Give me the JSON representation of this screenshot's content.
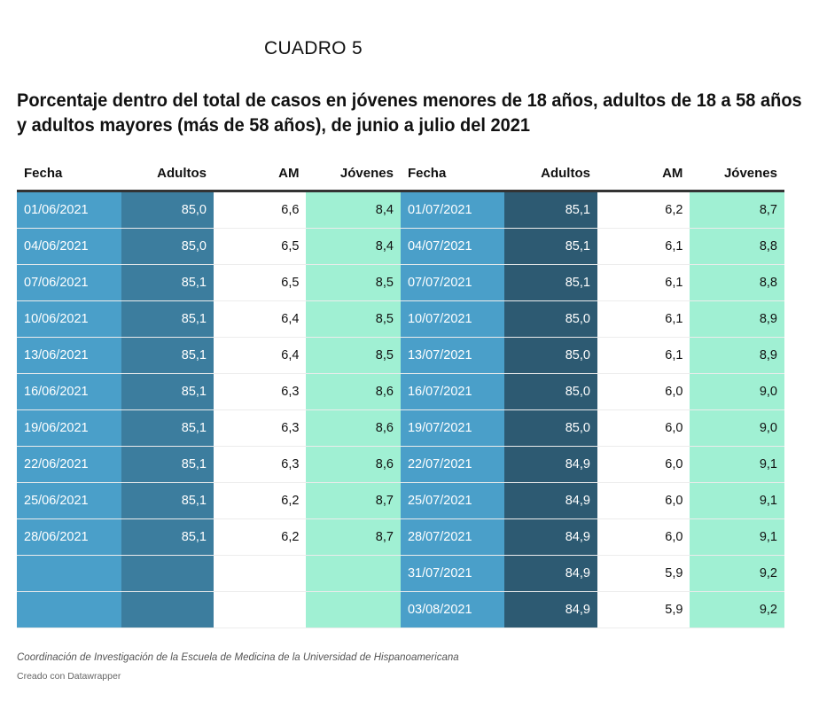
{
  "label": "CUADRO 5",
  "title_lines": [
    "Porcentaje dentro del total de casos en jóvenes menores de 18 años, adultos de 18 a 58 años",
    "y adultos mayores (más de 58 años), de junio a julio del 2021"
  ],
  "headers": [
    "Fecha",
    "Adultos",
    "AM",
    "Jóvenes",
    "Fecha",
    "Adultos",
    "AM",
    "Jóvenes"
  ],
  "rows": [
    [
      "01/06/2021",
      "85,0",
      "6,6",
      "8,4",
      "01/07/2021",
      "85,1",
      "6,2",
      "8,7"
    ],
    [
      "04/06/2021",
      "85,0",
      "6,5",
      "8,4",
      "04/07/2021",
      "85,1",
      "6,1",
      "8,8"
    ],
    [
      "07/06/2021",
      "85,1",
      "6,5",
      "8,5",
      "07/07/2021",
      "85,1",
      "6,1",
      "8,8"
    ],
    [
      "10/06/2021",
      "85,1",
      "6,4",
      "8,5",
      "10/07/2021",
      "85,0",
      "6,1",
      "8,9"
    ],
    [
      "13/06/2021",
      "85,1",
      "6,4",
      "8,5",
      "13/07/2021",
      "85,0",
      "6,1",
      "8,9"
    ],
    [
      "16/06/2021",
      "85,1",
      "6,3",
      "8,6",
      "16/07/2021",
      "85,0",
      "6,0",
      "9,0"
    ],
    [
      "19/06/2021",
      "85,1",
      "6,3",
      "8,6",
      "19/07/2021",
      "85,0",
      "6,0",
      "9,0"
    ],
    [
      "22/06/2021",
      "85,1",
      "6,3",
      "8,6",
      "22/07/2021",
      "84,9",
      "6,0",
      "9,1"
    ],
    [
      "25/06/2021",
      "85,1",
      "6,2",
      "8,7",
      "25/07/2021",
      "84,9",
      "6,0",
      "9,1"
    ],
    [
      "28/06/2021",
      "85,1",
      "6,2",
      "8,7",
      "28/07/2021",
      "84,9",
      "6,0",
      "9,1"
    ],
    [
      "",
      "",
      "",
      "",
      "31/07/2021",
      "84,9",
      "5,9",
      "9,2"
    ],
    [
      "",
      "",
      "",
      "",
      "03/08/2021",
      "84,9",
      "5,9",
      "9,2"
    ]
  ],
  "source": "Coordinación de Investigación de la Escuela de Medicina de la Universidad de Hispanoamericana",
  "credit": "Creado con Datawrapper",
  "colors": {
    "fecha_column": "#4a9fc9",
    "adultos_june_column": "#3c7d9e",
    "adultos_july_column": "#2d5a72",
    "jovenes_column": "#a0f0d3",
    "header_rule": "#333333"
  },
  "chart_data": {
    "type": "table",
    "columns": [
      "Fecha",
      "Adultos",
      "AM",
      "Jóvenes"
    ],
    "blocks": [
      {
        "rows": [
          [
            "01/06/2021",
            85.0,
            6.6,
            8.4
          ],
          [
            "04/06/2021",
            85.0,
            6.5,
            8.4
          ],
          [
            "07/06/2021",
            85.1,
            6.5,
            8.5
          ],
          [
            "10/06/2021",
            85.1,
            6.4,
            8.5
          ],
          [
            "13/06/2021",
            85.1,
            6.4,
            8.5
          ],
          [
            "16/06/2021",
            85.1,
            6.3,
            8.6
          ],
          [
            "19/06/2021",
            85.1,
            6.3,
            8.6
          ],
          [
            "22/06/2021",
            85.1,
            6.3,
            8.6
          ],
          [
            "25/06/2021",
            85.1,
            6.2,
            8.7
          ],
          [
            "28/06/2021",
            85.1,
            6.2,
            8.7
          ]
        ]
      },
      {
        "rows": [
          [
            "01/07/2021",
            85.1,
            6.2,
            8.7
          ],
          [
            "04/07/2021",
            85.1,
            6.1,
            8.8
          ],
          [
            "07/07/2021",
            85.1,
            6.1,
            8.8
          ],
          [
            "10/07/2021",
            85.0,
            6.1,
            8.9
          ],
          [
            "13/07/2021",
            85.0,
            6.1,
            8.9
          ],
          [
            "16/07/2021",
            85.0,
            6.0,
            9.0
          ],
          [
            "19/07/2021",
            85.0,
            6.0,
            9.0
          ],
          [
            "22/07/2021",
            84.9,
            6.0,
            9.1
          ],
          [
            "25/07/2021",
            84.9,
            6.0,
            9.1
          ],
          [
            "28/07/2021",
            84.9,
            6.0,
            9.1
          ],
          [
            "31/07/2021",
            84.9,
            5.9,
            9.2
          ],
          [
            "03/08/2021",
            84.9,
            5.9,
            9.2
          ]
        ]
      }
    ]
  }
}
